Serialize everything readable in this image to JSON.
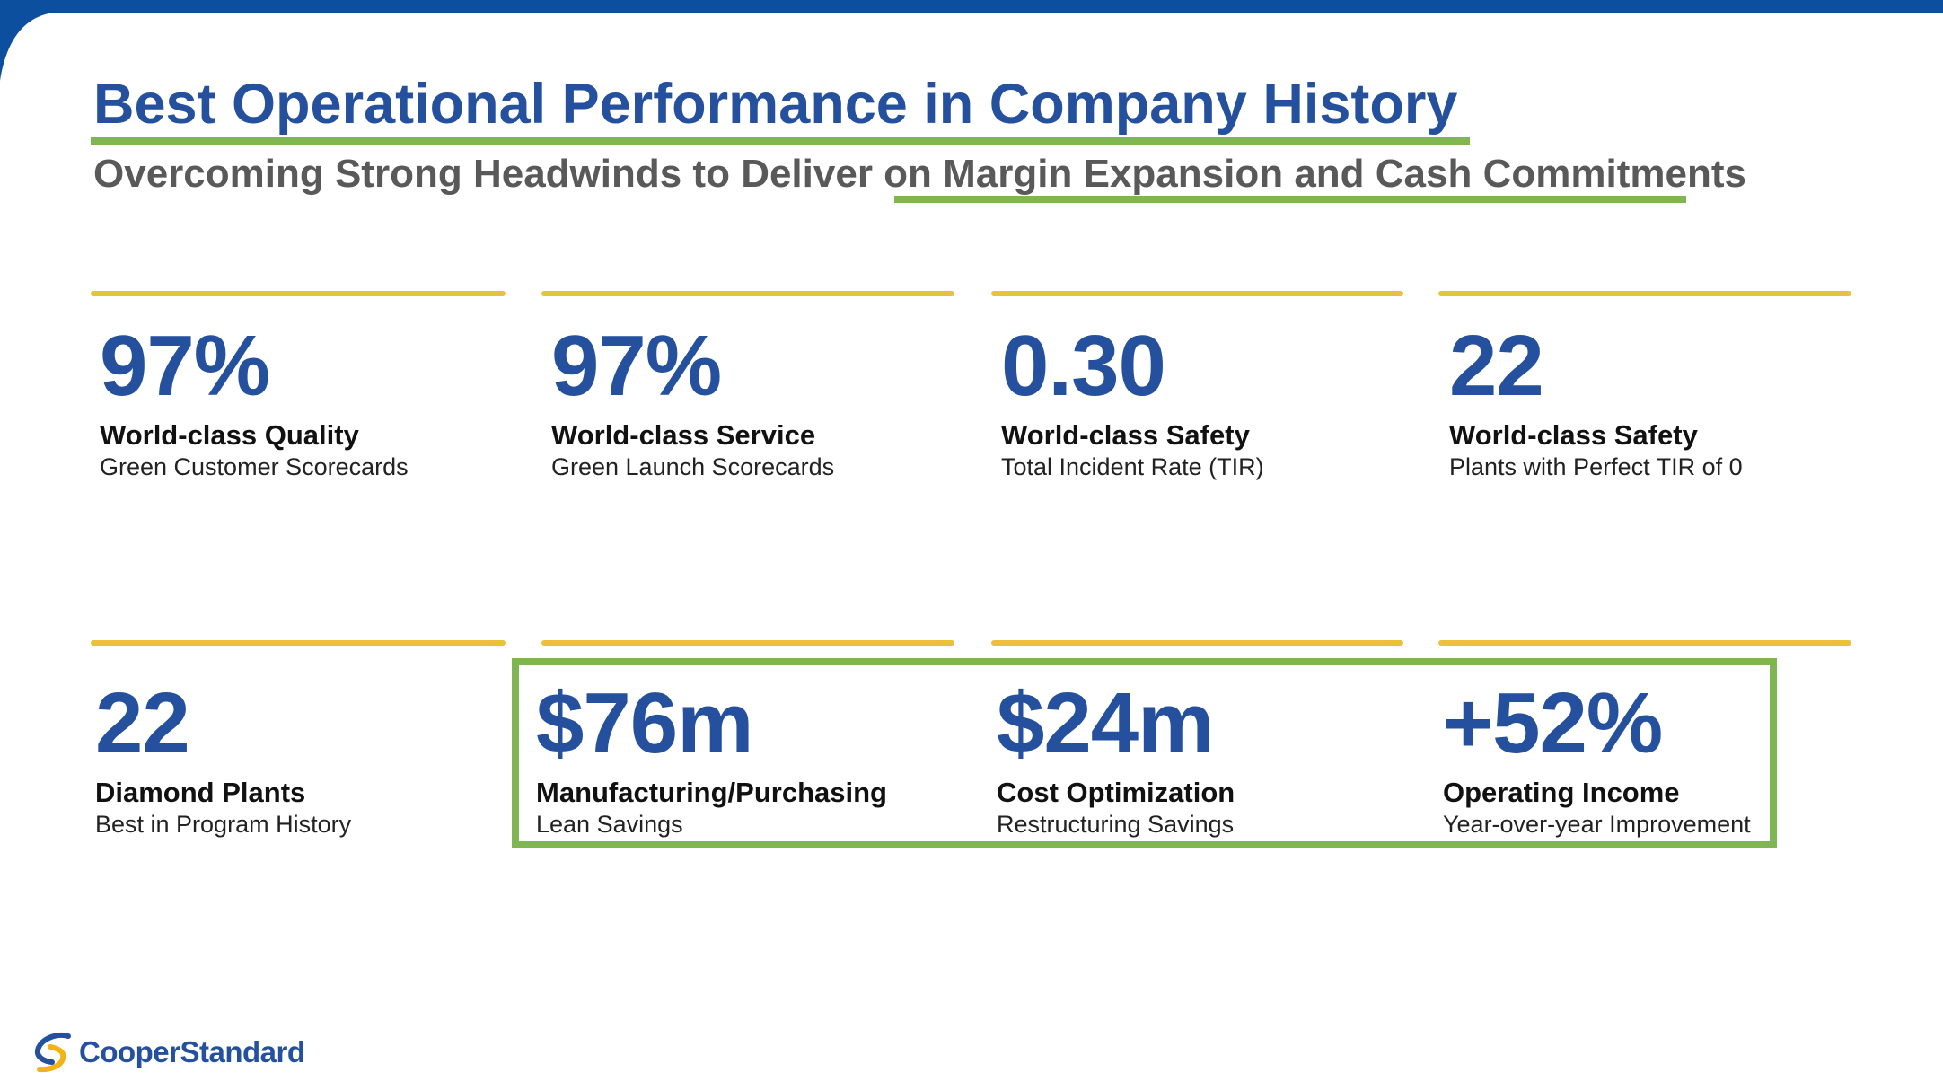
{
  "slide": {
    "title": "Best Operational Performance in Company History",
    "subtitle": "Overcoming Strong Headwinds to Deliver on Margin Expansion and Cash Commitments"
  },
  "metrics": [
    {
      "value": "97%",
      "label": "World-class Quality",
      "sub": "Green Customer Scorecards"
    },
    {
      "value": "97%",
      "label": "World-class Service",
      "sub": "Green Launch Scorecards"
    },
    {
      "value": "0.30",
      "label": "World-class Safety",
      "sub": "Total Incident Rate (TIR)"
    },
    {
      "value": "22",
      "label": "World-class Safety",
      "sub": "Plants with Perfect TIR of 0"
    },
    {
      "value": "22",
      "label": "Diamond Plants",
      "sub": "Best in Program History"
    },
    {
      "value": "$76m",
      "label": "Manufacturing/Purchasing",
      "sub": "Lean Savings"
    },
    {
      "value": "$24m",
      "label": "Cost Optimization",
      "sub": "Restructuring Savings"
    },
    {
      "value": "+52%",
      "label": "Operating Income",
      "sub": "Year-over-year Improvement"
    }
  ],
  "logo": {
    "text": "CooperStandard",
    "icon": "cooper-standard-swoosh-icon"
  },
  "colors": {
    "title_blue": "#24509e",
    "accent_green": "#7fb553",
    "rule_gold": "#e8c23a",
    "band_blue": "#0b4f9e",
    "logo_gold": "#f2b316"
  }
}
